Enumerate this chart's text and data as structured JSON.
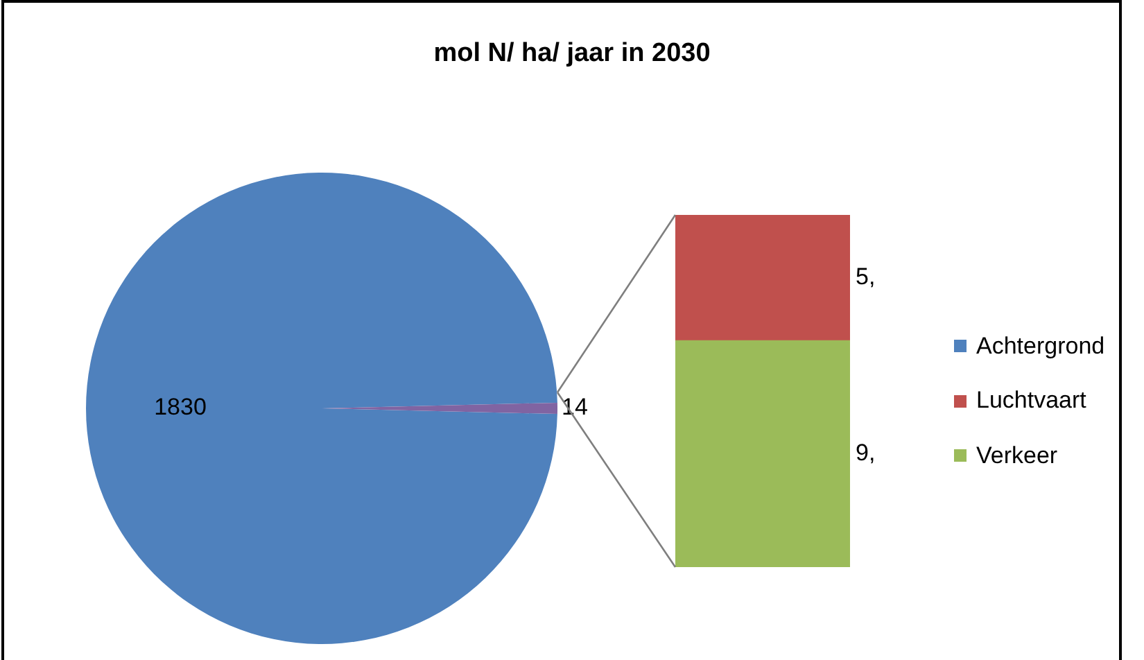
{
  "chart_data": [
    {
      "type": "pie",
      "title": "mol N/ ha/ jaar in 2030",
      "categories": [
        "Achtergrond",
        null
      ],
      "values": [
        1830,
        14
      ],
      "colors": [
        "#4f81bd",
        "#8064a2"
      ],
      "data_labels": true,
      "legend": "right"
    },
    {
      "type": "bar",
      "stacked": true,
      "categories": [
        null
      ],
      "series": [
        {
          "name": "Verkeer",
          "color": "#9bbb59",
          "values": [
            9
          ],
          "value_labels": [
            "9,"
          ]
        },
        {
          "name": "Luchtvaart",
          "color": "#c0504d",
          "values": [
            5
          ],
          "value_labels": [
            "5,"
          ]
        }
      ],
      "legend": "right"
    }
  ]
}
